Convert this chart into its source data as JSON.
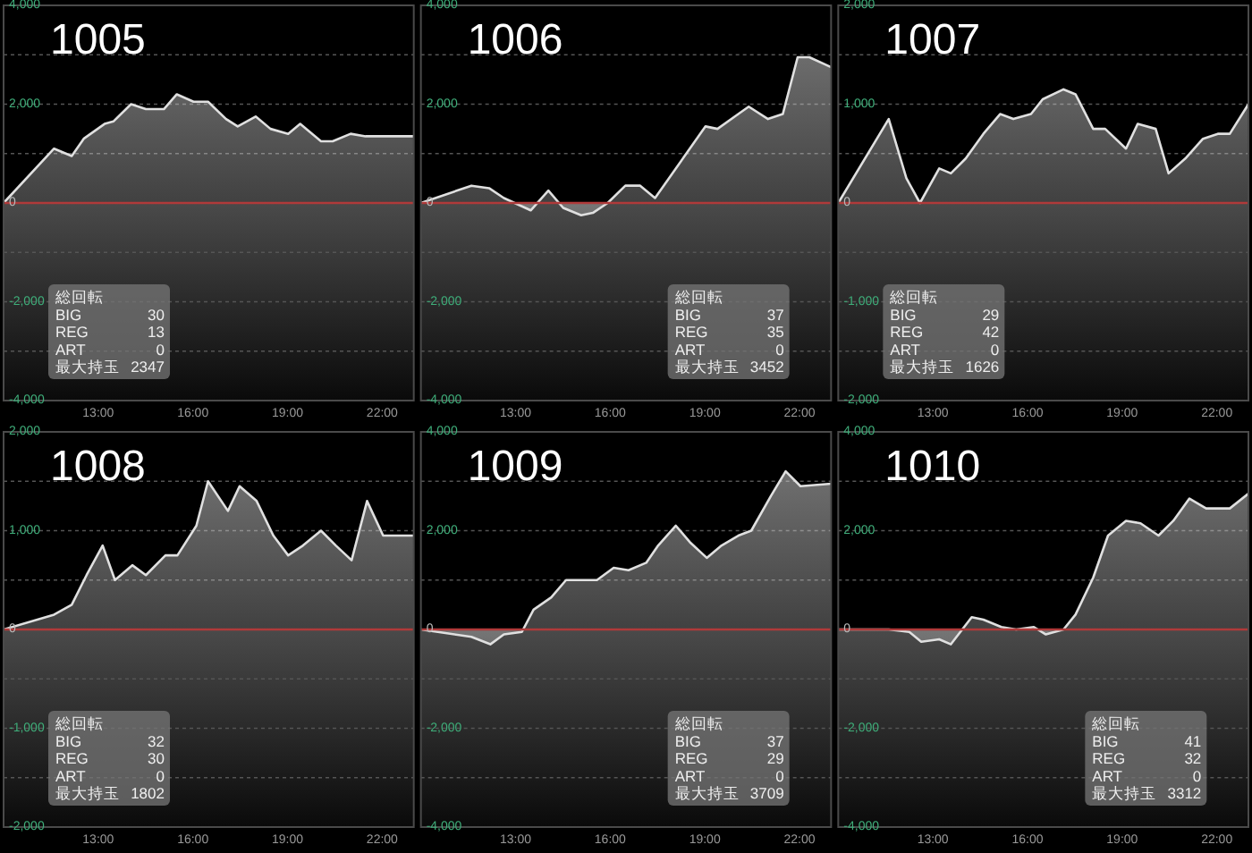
{
  "chart_data": [
    {
      "type": "area",
      "title": "1005",
      "xlim": [
        10,
        23
      ],
      "xticks": [
        {
          "value": 13,
          "label": "13:00"
        },
        {
          "value": 16,
          "label": "16:00"
        },
        {
          "value": 19,
          "label": "19:00"
        },
        {
          "value": 22,
          "label": "22:00"
        }
      ],
      "ylim": [
        -4000,
        4000
      ],
      "yticks": [
        {
          "value": 4000,
          "label": "4,000"
        },
        {
          "value": 3000,
          "label": null
        },
        {
          "value": 2000,
          "label": "2,000"
        },
        {
          "value": 1000,
          "label": null
        },
        {
          "value": 0,
          "label": "0"
        },
        {
          "value": -1000,
          "label": null
        },
        {
          "value": -2000,
          "label": "-2,000"
        },
        {
          "value": -3000,
          "label": null
        },
        {
          "value": -4000,
          "label": "-4,000"
        }
      ],
      "grid": "y",
      "ref_lines": [
        {
          "axis": "y",
          "value": 0,
          "color": "#b03a3a"
        }
      ],
      "annotations": [
        "総回転",
        "BIG 30",
        "REG 13",
        "ART 0",
        "最大持玉 2347"
      ],
      "series": [
        {
          "color": "#e0e0e0",
          "x": [
            10,
            11.6,
            12.16,
            12.54,
            13.2,
            13.48,
            14.04,
            14.51,
            15.08,
            15.49,
            16.02,
            16.48,
            17.05,
            17.42,
            17.99,
            18.46,
            19.02,
            19.4,
            20.06,
            20.43,
            21.0,
            21.47,
            23.0
          ],
          "values": [
            0,
            1100,
            950,
            1300,
            1600,
            1650,
            2000,
            1900,
            1900,
            2200,
            2050,
            2050,
            1700,
            1550,
            1750,
            1500,
            1400,
            1600,
            1250,
            1250,
            1400,
            1350,
            1350
          ]
        }
      ]
    },
    {
      "type": "area",
      "title": "1006",
      "xlim": [
        10,
        23
      ],
      "xticks": [
        {
          "value": 13,
          "label": "13:00"
        },
        {
          "value": 16,
          "label": "16:00"
        },
        {
          "value": 19,
          "label": "19:00"
        },
        {
          "value": 22,
          "label": "22:00"
        }
      ],
      "ylim": [
        -4000,
        4000
      ],
      "yticks": [
        {
          "value": 4000,
          "label": "4,000"
        },
        {
          "value": 3000,
          "label": null
        },
        {
          "value": 2000,
          "label": "2,000"
        },
        {
          "value": 1000,
          "label": null
        },
        {
          "value": 0,
          "label": "0"
        },
        {
          "value": -1000,
          "label": null
        },
        {
          "value": -2000,
          "label": "-2,000"
        },
        {
          "value": -3000,
          "label": null
        },
        {
          "value": -4000,
          "label": "-4,000"
        }
      ],
      "grid": "y",
      "ref_lines": [
        {
          "axis": "y",
          "value": 0,
          "color": "#b03a3a"
        }
      ],
      "annotations": [
        "総回転",
        "BIG 37",
        "REG 35",
        "ART 0",
        "最大持玉 3452"
      ],
      "series": [
        {
          "color": "#e0e0e0",
          "x": [
            10,
            11.6,
            12.16,
            12.63,
            13.48,
            14.04,
            14.51,
            15.08,
            15.45,
            15.92,
            16.48,
            16.95,
            17.42,
            19.02,
            19.4,
            20.06,
            20.39,
            21.0,
            21.47,
            21.94,
            22.31,
            23.0
          ],
          "values": [
            0,
            350,
            300,
            100,
            -150,
            250,
            -100,
            -250,
            -200,
            0,
            350,
            350,
            100,
            1550,
            1500,
            1800,
            1950,
            1700,
            1800,
            2950,
            2950,
            2750
          ]
        }
      ]
    },
    {
      "type": "area",
      "title": "1007",
      "xlim": [
        10,
        23
      ],
      "xticks": [
        {
          "value": 13,
          "label": "13:00"
        },
        {
          "value": 16,
          "label": "16:00"
        },
        {
          "value": 19,
          "label": "19:00"
        },
        {
          "value": 22,
          "label": "22:00"
        }
      ],
      "ylim": [
        -2000,
        2000
      ],
      "yticks": [
        {
          "value": 2000,
          "label": "2,000"
        },
        {
          "value": 1500,
          "label": null
        },
        {
          "value": 1000,
          "label": "1,000"
        },
        {
          "value": 500,
          "label": null
        },
        {
          "value": 0,
          "label": "0"
        },
        {
          "value": -500,
          "label": null
        },
        {
          "value": -1000,
          "label": "-1,000"
        },
        {
          "value": -1500,
          "label": null
        },
        {
          "value": -2000,
          "label": "-2,000"
        }
      ],
      "grid": "y",
      "ref_lines": [
        {
          "axis": "y",
          "value": 0,
          "color": "#b03a3a"
        }
      ],
      "annotations": [
        "総回転",
        "BIG 29",
        "REG 42",
        "ART 0",
        "最大持玉 1626"
      ],
      "series": [
        {
          "color": "#e0e0e0",
          "x": [
            10,
            11.6,
            12.16,
            12.59,
            13.2,
            13.57,
            14.04,
            14.6,
            15.13,
            15.55,
            16.11,
            16.48,
            17.14,
            17.52,
            18.08,
            18.46,
            19.12,
            19.49,
            20.06,
            20.47,
            21.0,
            21.56,
            22.03,
            22.41,
            23.0
          ],
          "values": [
            0,
            850,
            250,
            0,
            350,
            300,
            450,
            700,
            900,
            850,
            900,
            1050,
            1150,
            1100,
            750,
            750,
            550,
            800,
            750,
            300,
            450,
            650,
            700,
            700,
            1000
          ]
        }
      ]
    },
    {
      "type": "area",
      "title": "1008",
      "xlim": [
        10,
        23
      ],
      "xticks": [
        {
          "value": 13,
          "label": "13:00"
        },
        {
          "value": 16,
          "label": "16:00"
        },
        {
          "value": 19,
          "label": "19:00"
        },
        {
          "value": 22,
          "label": "22:00"
        }
      ],
      "ylim": [
        -2000,
        2000
      ],
      "yticks": [
        {
          "value": 2000,
          "label": "2,000"
        },
        {
          "value": 1500,
          "label": null
        },
        {
          "value": 1000,
          "label": "1,000"
        },
        {
          "value": 500,
          "label": null
        },
        {
          "value": 0,
          "label": "0"
        },
        {
          "value": -500,
          "label": null
        },
        {
          "value": -1000,
          "label": "-1,000"
        },
        {
          "value": -1500,
          "label": null
        },
        {
          "value": -2000,
          "label": "-2,000"
        }
      ],
      "grid": "y",
      "ref_lines": [
        {
          "axis": "y",
          "value": 0,
          "color": "#b03a3a"
        }
      ],
      "annotations": [
        "総回転",
        "BIG 32",
        "REG 30",
        "ART 0",
        "最大持玉 1802"
      ],
      "series": [
        {
          "color": "#e0e0e0",
          "x": [
            10,
            11.6,
            12.16,
            12.63,
            13.14,
            13.53,
            14.08,
            14.51,
            15.13,
            15.51,
            16.11,
            16.48,
            17.11,
            17.48,
            18.02,
            18.55,
            19.02,
            19.49,
            20.06,
            20.53,
            21.03,
            21.52,
            22.03,
            23.0
          ],
          "values": [
            0,
            150,
            250,
            550,
            850,
            500,
            650,
            550,
            750,
            750,
            1050,
            1500,
            1200,
            1450,
            1300,
            950,
            750,
            850,
            1000,
            850,
            700,
            1300,
            950,
            950
          ]
        }
      ]
    },
    {
      "type": "area",
      "title": "1009",
      "xlim": [
        10,
        23
      ],
      "xticks": [
        {
          "value": 13,
          "label": "13:00"
        },
        {
          "value": 16,
          "label": "16:00"
        },
        {
          "value": 19,
          "label": "19:00"
        },
        {
          "value": 22,
          "label": "22:00"
        }
      ],
      "ylim": [
        -4000,
        4000
      ],
      "yticks": [
        {
          "value": 4000,
          "label": "4,000"
        },
        {
          "value": 3000,
          "label": null
        },
        {
          "value": 2000,
          "label": "2,000"
        },
        {
          "value": 1000,
          "label": null
        },
        {
          "value": 0,
          "label": "0"
        },
        {
          "value": -1000,
          "label": null
        },
        {
          "value": -2000,
          "label": "-2,000"
        },
        {
          "value": -3000,
          "label": null
        },
        {
          "value": -4000,
          "label": "-4,000"
        }
      ],
      "grid": "y",
      "ref_lines": [
        {
          "axis": "y",
          "value": 0,
          "color": "#b03a3a"
        }
      ],
      "annotations": [
        "総回転",
        "BIG 37",
        "REG 29",
        "ART 0",
        "最大持玉 3709"
      ],
      "series": [
        {
          "color": "#e0e0e0",
          "x": [
            10,
            11.6,
            12.2,
            12.63,
            13.2,
            13.57,
            14.13,
            14.6,
            15.08,
            15.58,
            16.11,
            16.58,
            17.14,
            17.52,
            18.08,
            18.55,
            19.06,
            19.53,
            20.06,
            20.47,
            21.09,
            21.56,
            22.03,
            23.0
          ],
          "values": [
            0,
            -150,
            -300,
            -100,
            -50,
            400,
            650,
            1000,
            1000,
            1000,
            1250,
            1200,
            1350,
            1700,
            2100,
            1750,
            1450,
            1700,
            1900,
            2000,
            2700,
            3200,
            2900,
            2950
          ]
        }
      ]
    },
    {
      "type": "area",
      "title": "1010",
      "xlim": [
        10,
        23
      ],
      "xticks": [
        {
          "value": 13,
          "label": "13:00"
        },
        {
          "value": 16,
          "label": "16:00"
        },
        {
          "value": 19,
          "label": "19:00"
        },
        {
          "value": 22,
          "label": "22:00"
        }
      ],
      "ylim": [
        -4000,
        4000
      ],
      "yticks": [
        {
          "value": 4000,
          "label": "4,000"
        },
        {
          "value": 3000,
          "label": null
        },
        {
          "value": 2000,
          "label": "2,000"
        },
        {
          "value": 1000,
          "label": null
        },
        {
          "value": 0,
          "label": "0"
        },
        {
          "value": -1000,
          "label": null
        },
        {
          "value": -2000,
          "label": "-2,000"
        },
        {
          "value": -3000,
          "label": null
        },
        {
          "value": -4000,
          "label": "-4,000"
        }
      ],
      "grid": "y",
      "ref_lines": [
        {
          "axis": "y",
          "value": 0,
          "color": "#b03a3a"
        }
      ],
      "annotations": [
        "総回転",
        "BIG 41",
        "REG 32",
        "ART 0",
        "最大持玉 3312"
      ],
      "series": [
        {
          "color": "#e0e0e0",
          "x": [
            10,
            11.6,
            12.25,
            12.63,
            13.2,
            13.57,
            14.23,
            14.6,
            15.17,
            15.64,
            16.2,
            16.58,
            17.14,
            17.52,
            18.08,
            18.55,
            19.12,
            19.58,
            20.15,
            20.62,
            21.13,
            21.66,
            22.41,
            23.0
          ],
          "values": [
            0,
            0,
            -50,
            -250,
            -200,
            -300,
            250,
            200,
            50,
            0,
            50,
            -100,
            0,
            300,
            1050,
            1900,
            2200,
            2150,
            1900,
            2200,
            2650,
            2450,
            2450,
            2750
          ]
        }
      ]
    }
  ]
}
